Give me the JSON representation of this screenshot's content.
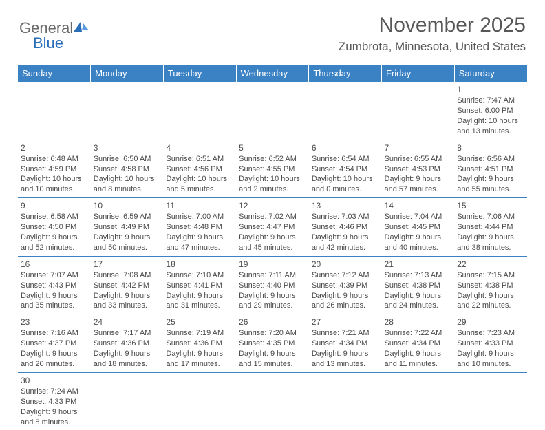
{
  "logo": {
    "text1": "General",
    "text2": "Blue"
  },
  "title": "November 2025",
  "location": "Zumbrota, Minnesota, United States",
  "weekdays": [
    "Sunday",
    "Monday",
    "Tuesday",
    "Wednesday",
    "Thursday",
    "Friday",
    "Saturday"
  ],
  "header_bg": "#3b82c4",
  "header_fg": "#ffffff",
  "rule_color": "#3b82c4",
  "text_color": "#4a4a4a",
  "title_color": "#585858",
  "font_family": "Arial",
  "title_fontsize": 30,
  "location_fontsize": 17,
  "cell_fontsize": 11,
  "weeks": [
    [
      null,
      null,
      null,
      null,
      null,
      null,
      {
        "n": "1",
        "sr": "Sunrise: 7:47 AM",
        "ss": "Sunset: 6:00 PM",
        "d1": "Daylight: 10 hours",
        "d2": "and 13 minutes."
      }
    ],
    [
      {
        "n": "2",
        "sr": "Sunrise: 6:48 AM",
        "ss": "Sunset: 4:59 PM",
        "d1": "Daylight: 10 hours",
        "d2": "and 10 minutes."
      },
      {
        "n": "3",
        "sr": "Sunrise: 6:50 AM",
        "ss": "Sunset: 4:58 PM",
        "d1": "Daylight: 10 hours",
        "d2": "and 8 minutes."
      },
      {
        "n": "4",
        "sr": "Sunrise: 6:51 AM",
        "ss": "Sunset: 4:56 PM",
        "d1": "Daylight: 10 hours",
        "d2": "and 5 minutes."
      },
      {
        "n": "5",
        "sr": "Sunrise: 6:52 AM",
        "ss": "Sunset: 4:55 PM",
        "d1": "Daylight: 10 hours",
        "d2": "and 2 minutes."
      },
      {
        "n": "6",
        "sr": "Sunrise: 6:54 AM",
        "ss": "Sunset: 4:54 PM",
        "d1": "Daylight: 10 hours",
        "d2": "and 0 minutes."
      },
      {
        "n": "7",
        "sr": "Sunrise: 6:55 AM",
        "ss": "Sunset: 4:53 PM",
        "d1": "Daylight: 9 hours",
        "d2": "and 57 minutes."
      },
      {
        "n": "8",
        "sr": "Sunrise: 6:56 AM",
        "ss": "Sunset: 4:51 PM",
        "d1": "Daylight: 9 hours",
        "d2": "and 55 minutes."
      }
    ],
    [
      {
        "n": "9",
        "sr": "Sunrise: 6:58 AM",
        "ss": "Sunset: 4:50 PM",
        "d1": "Daylight: 9 hours",
        "d2": "and 52 minutes."
      },
      {
        "n": "10",
        "sr": "Sunrise: 6:59 AM",
        "ss": "Sunset: 4:49 PM",
        "d1": "Daylight: 9 hours",
        "d2": "and 50 minutes."
      },
      {
        "n": "11",
        "sr": "Sunrise: 7:00 AM",
        "ss": "Sunset: 4:48 PM",
        "d1": "Daylight: 9 hours",
        "d2": "and 47 minutes."
      },
      {
        "n": "12",
        "sr": "Sunrise: 7:02 AM",
        "ss": "Sunset: 4:47 PM",
        "d1": "Daylight: 9 hours",
        "d2": "and 45 minutes."
      },
      {
        "n": "13",
        "sr": "Sunrise: 7:03 AM",
        "ss": "Sunset: 4:46 PM",
        "d1": "Daylight: 9 hours",
        "d2": "and 42 minutes."
      },
      {
        "n": "14",
        "sr": "Sunrise: 7:04 AM",
        "ss": "Sunset: 4:45 PM",
        "d1": "Daylight: 9 hours",
        "d2": "and 40 minutes."
      },
      {
        "n": "15",
        "sr": "Sunrise: 7:06 AM",
        "ss": "Sunset: 4:44 PM",
        "d1": "Daylight: 9 hours",
        "d2": "and 38 minutes."
      }
    ],
    [
      {
        "n": "16",
        "sr": "Sunrise: 7:07 AM",
        "ss": "Sunset: 4:43 PM",
        "d1": "Daylight: 9 hours",
        "d2": "and 35 minutes."
      },
      {
        "n": "17",
        "sr": "Sunrise: 7:08 AM",
        "ss": "Sunset: 4:42 PM",
        "d1": "Daylight: 9 hours",
        "d2": "and 33 minutes."
      },
      {
        "n": "18",
        "sr": "Sunrise: 7:10 AM",
        "ss": "Sunset: 4:41 PM",
        "d1": "Daylight: 9 hours",
        "d2": "and 31 minutes."
      },
      {
        "n": "19",
        "sr": "Sunrise: 7:11 AM",
        "ss": "Sunset: 4:40 PM",
        "d1": "Daylight: 9 hours",
        "d2": "and 29 minutes."
      },
      {
        "n": "20",
        "sr": "Sunrise: 7:12 AM",
        "ss": "Sunset: 4:39 PM",
        "d1": "Daylight: 9 hours",
        "d2": "and 26 minutes."
      },
      {
        "n": "21",
        "sr": "Sunrise: 7:13 AM",
        "ss": "Sunset: 4:38 PM",
        "d1": "Daylight: 9 hours",
        "d2": "and 24 minutes."
      },
      {
        "n": "22",
        "sr": "Sunrise: 7:15 AM",
        "ss": "Sunset: 4:38 PM",
        "d1": "Daylight: 9 hours",
        "d2": "and 22 minutes."
      }
    ],
    [
      {
        "n": "23",
        "sr": "Sunrise: 7:16 AM",
        "ss": "Sunset: 4:37 PM",
        "d1": "Daylight: 9 hours",
        "d2": "and 20 minutes."
      },
      {
        "n": "24",
        "sr": "Sunrise: 7:17 AM",
        "ss": "Sunset: 4:36 PM",
        "d1": "Daylight: 9 hours",
        "d2": "and 18 minutes."
      },
      {
        "n": "25",
        "sr": "Sunrise: 7:19 AM",
        "ss": "Sunset: 4:36 PM",
        "d1": "Daylight: 9 hours",
        "d2": "and 17 minutes."
      },
      {
        "n": "26",
        "sr": "Sunrise: 7:20 AM",
        "ss": "Sunset: 4:35 PM",
        "d1": "Daylight: 9 hours",
        "d2": "and 15 minutes."
      },
      {
        "n": "27",
        "sr": "Sunrise: 7:21 AM",
        "ss": "Sunset: 4:34 PM",
        "d1": "Daylight: 9 hours",
        "d2": "and 13 minutes."
      },
      {
        "n": "28",
        "sr": "Sunrise: 7:22 AM",
        "ss": "Sunset: 4:34 PM",
        "d1": "Daylight: 9 hours",
        "d2": "and 11 minutes."
      },
      {
        "n": "29",
        "sr": "Sunrise: 7:23 AM",
        "ss": "Sunset: 4:33 PM",
        "d1": "Daylight: 9 hours",
        "d2": "and 10 minutes."
      }
    ],
    [
      {
        "n": "30",
        "sr": "Sunrise: 7:24 AM",
        "ss": "Sunset: 4:33 PM",
        "d1": "Daylight: 9 hours",
        "d2": "and 8 minutes."
      },
      null,
      null,
      null,
      null,
      null,
      null
    ]
  ]
}
